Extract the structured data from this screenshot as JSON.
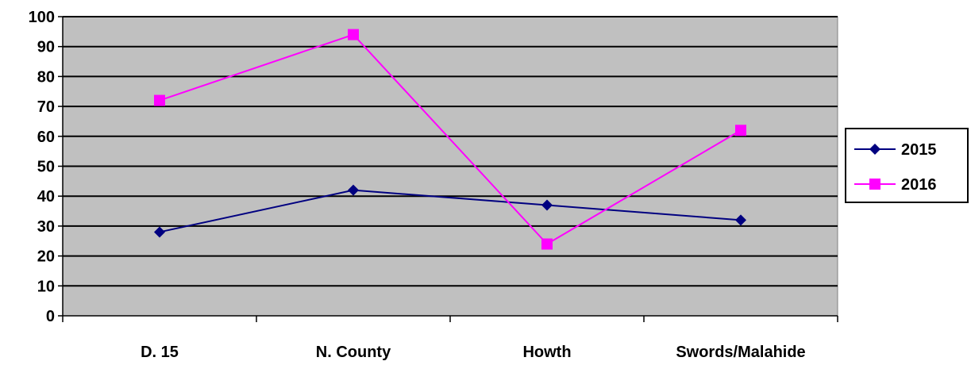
{
  "chart_data": {
    "type": "line",
    "title": "",
    "xlabel": "",
    "ylabel": "",
    "categories": [
      "D. 15",
      "N. County",
      "Howth",
      "Swords/Malahide"
    ],
    "ylim": [
      0,
      100
    ],
    "yticks": [
      0,
      10,
      20,
      30,
      40,
      50,
      60,
      70,
      80,
      90,
      100
    ],
    "grid": true,
    "legend_position": "right",
    "plot_background": "#c0c0c0",
    "series": [
      {
        "name": "2015",
        "values": [
          28,
          42,
          37,
          32
        ],
        "color": "#000080",
        "marker": "diamond"
      },
      {
        "name": "2016",
        "values": [
          72,
          94,
          24,
          62
        ],
        "color": "#ff00ff",
        "marker": "square"
      }
    ]
  }
}
